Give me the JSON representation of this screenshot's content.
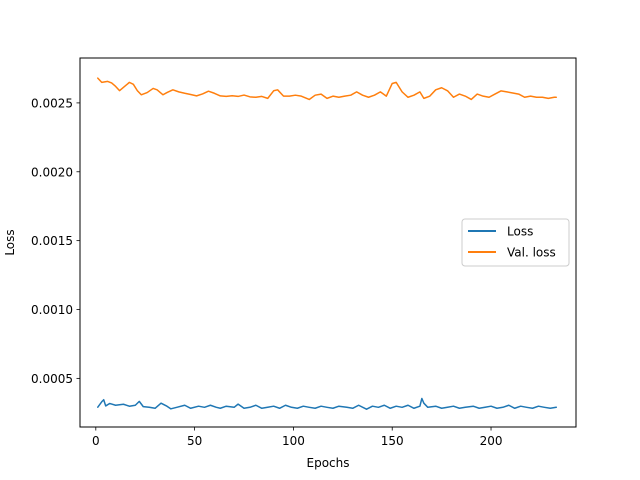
{
  "chart_data": {
    "type": "line",
    "title": "",
    "xlabel": "Epochs",
    "ylabel": "Loss",
    "xlim": [
      -8,
      243
    ],
    "ylim": [
      0.000147,
      0.002826
    ],
    "xticks": [
      0,
      50,
      100,
      150,
      200
    ],
    "xtick_labels": [
      "0",
      "50",
      "100",
      "150",
      "200"
    ],
    "yticks": [
      0.0005,
      0.001,
      0.0015,
      0.002,
      0.0025
    ],
    "ytick_labels": [
      "0.0005",
      "0.0010",
      "0.0015",
      "0.0020",
      "0.0025"
    ],
    "grid": false,
    "legend": "center-right",
    "series": [
      {
        "name": "Loss",
        "color": "#1f77b4",
        "points": [
          [
            1,
            0.000291
          ],
          [
            3,
            0.00033
          ],
          [
            4,
            0.000345
          ],
          [
            5,
            0.0003
          ],
          [
            7,
            0.000318
          ],
          [
            10,
            0.000305
          ],
          [
            14,
            0.000312
          ],
          [
            17,
            0.000298
          ],
          [
            20,
            0.000305
          ],
          [
            22,
            0.000333
          ],
          [
            24,
            0.000295
          ],
          [
            27,
            0.00029
          ],
          [
            30,
            0.000283
          ],
          [
            33,
            0.00032
          ],
          [
            36,
            0.000298
          ],
          [
            38,
            0.000279
          ],
          [
            41,
            0.00029
          ],
          [
            45,
            0.000305
          ],
          [
            48,
            0.000283
          ],
          [
            52,
            0.000298
          ],
          [
            55,
            0.00029
          ],
          [
            58,
            0.000305
          ],
          [
            61,
            0.00029
          ],
          [
            63,
            0.000283
          ],
          [
            66,
            0.000298
          ],
          [
            70,
            0.00029
          ],
          [
            72,
            0.000313
          ],
          [
            75,
            0.000283
          ],
          [
            78,
            0.00029
          ],
          [
            81,
            0.000305
          ],
          [
            84,
            0.000283
          ],
          [
            87,
            0.00029
          ],
          [
            90,
            0.000298
          ],
          [
            93,
            0.000283
          ],
          [
            96,
            0.000305
          ],
          [
            99,
            0.00029
          ],
          [
            102,
            0.000283
          ],
          [
            105,
            0.000298
          ],
          [
            108,
            0.00029
          ],
          [
            111,
            0.000283
          ],
          [
            114,
            0.000298
          ],
          [
            117,
            0.00029
          ],
          [
            120,
            0.000283
          ],
          [
            123,
            0.000298
          ],
          [
            127,
            0.00029
          ],
          [
            130,
            0.000283
          ],
          [
            133,
            0.000305
          ],
          [
            137,
            0.000276
          ],
          [
            140,
            0.000298
          ],
          [
            143,
            0.00029
          ],
          [
            146,
            0.000305
          ],
          [
            149,
            0.000283
          ],
          [
            152,
            0.000298
          ],
          [
            155,
            0.00029
          ],
          [
            158,
            0.000305
          ],
          [
            161,
            0.000283
          ],
          [
            164,
            0.000298
          ],
          [
            165,
            0.000354
          ],
          [
            166,
            0.00032
          ],
          [
            168,
            0.00029
          ],
          [
            172,
            0.000298
          ],
          [
            175,
            0.000283
          ],
          [
            178,
            0.00029
          ],
          [
            181,
            0.000298
          ],
          [
            184,
            0.000283
          ],
          [
            187,
            0.00029
          ],
          [
            191,
            0.000298
          ],
          [
            194,
            0.000283
          ],
          [
            197,
            0.00029
          ],
          [
            200,
            0.000298
          ],
          [
            203,
            0.000283
          ],
          [
            206,
            0.00029
          ],
          [
            209,
            0.000305
          ],
          [
            212,
            0.000283
          ],
          [
            215,
            0.000298
          ],
          [
            218,
            0.00029
          ],
          [
            221,
            0.000283
          ],
          [
            224,
            0.000298
          ],
          [
            227,
            0.00029
          ],
          [
            230,
            0.000283
          ],
          [
            233,
            0.00029
          ]
        ]
      },
      {
        "name": "Val. loss",
        "color": "#ff7f0e",
        "points": [
          [
            1,
            0.00268
          ],
          [
            3,
            0.002649
          ],
          [
            6,
            0.002656
          ],
          [
            8,
            0.002645
          ],
          [
            10,
            0.00262
          ],
          [
            12,
            0.002589
          ],
          [
            15,
            0.002625
          ],
          [
            17,
            0.002649
          ],
          [
            19,
            0.002635
          ],
          [
            21,
            0.002589
          ],
          [
            23,
            0.002559
          ],
          [
            26,
            0.002575
          ],
          [
            29,
            0.002605
          ],
          [
            31,
            0.002595
          ],
          [
            34,
            0.002559
          ],
          [
            36,
            0.002575
          ],
          [
            39,
            0.002595
          ],
          [
            42,
            0.00258
          ],
          [
            45,
            0.00257
          ],
          [
            48,
            0.002561
          ],
          [
            51,
            0.002551
          ],
          [
            54,
            0.002565
          ],
          [
            57,
            0.002585
          ],
          [
            60,
            0.00257
          ],
          [
            63,
            0.002551
          ],
          [
            66,
            0.002547
          ],
          [
            69,
            0.002552
          ],
          [
            72,
            0.002547
          ],
          [
            75,
            0.002557
          ],
          [
            78,
            0.002544
          ],
          [
            81,
            0.002541
          ],
          [
            84,
            0.002547
          ],
          [
            87,
            0.002533
          ],
          [
            90,
            0.002588
          ],
          [
            92,
            0.002595
          ],
          [
            95,
            0.002549
          ],
          [
            98,
            0.002549
          ],
          [
            101,
            0.002556
          ],
          [
            104,
            0.002549
          ],
          [
            108,
            0.002525
          ],
          [
            111,
            0.002556
          ],
          [
            114,
            0.002564
          ],
          [
            117,
            0.002533
          ],
          [
            120,
            0.002549
          ],
          [
            123,
            0.002541
          ],
          [
            126,
            0.002549
          ],
          [
            129,
            0.002556
          ],
          [
            132,
            0.00258
          ],
          [
            135,
            0.002556
          ],
          [
            138,
            0.002541
          ],
          [
            141,
            0.002556
          ],
          [
            144,
            0.00258
          ],
          [
            147,
            0.002549
          ],
          [
            150,
            0.002641
          ],
          [
            152,
            0.002649
          ],
          [
            155,
            0.00258
          ],
          [
            158,
            0.002541
          ],
          [
            161,
            0.002556
          ],
          [
            164,
            0.00258
          ],
          [
            166,
            0.002533
          ],
          [
            169,
            0.002549
          ],
          [
            172,
            0.002595
          ],
          [
            175,
            0.00261
          ],
          [
            178,
            0.002588
          ],
          [
            181,
            0.002541
          ],
          [
            184,
            0.002564
          ],
          [
            187,
            0.002549
          ],
          [
            190,
            0.002525
          ],
          [
            193,
            0.002564
          ],
          [
            196,
            0.002549
          ],
          [
            199,
            0.002541
          ],
          [
            202,
            0.002564
          ],
          [
            205,
            0.002587
          ],
          [
            208,
            0.00258
          ],
          [
            211,
            0.002572
          ],
          [
            214,
            0.002564
          ],
          [
            217,
            0.002541
          ],
          [
            220,
            0.002549
          ],
          [
            223,
            0.002541
          ],
          [
            226,
            0.002541
          ],
          [
            229,
            0.002533
          ],
          [
            232,
            0.002541
          ],
          [
            233,
            0.002541
          ]
        ]
      }
    ]
  }
}
